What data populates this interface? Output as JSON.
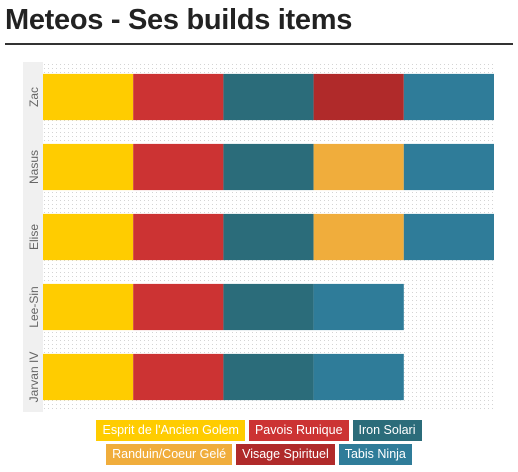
{
  "page": {
    "title": "Meteos - Ses builds items"
  },
  "chart_data": {
    "type": "bar",
    "orientation": "horizontal",
    "stacked": true,
    "title": "Meteos - Ses builds items",
    "xlabel": "",
    "ylabel": "",
    "categories": [
      "Zac",
      "Nasus",
      "Elise",
      "Lee-Sin",
      "Jarvan IV"
    ],
    "xlim": [
      0,
      5
    ],
    "grid": true,
    "legend_position": "bottom",
    "series": [
      {
        "name": "Esprit de l'Ancien Golem",
        "color": "#ffcc00",
        "values": [
          1,
          1,
          1,
          1,
          1
        ]
      },
      {
        "name": "Pavois Runique",
        "color": "#cc3333",
        "values": [
          1,
          1,
          1,
          1,
          1
        ]
      },
      {
        "name": "Iron Solari",
        "color": "#2b6c7a",
        "values": [
          1,
          1,
          1,
          1,
          1
        ]
      },
      {
        "name": "Randuin/Coeur Gelé",
        "color": "#f0ad3c",
        "values": [
          0,
          1,
          1,
          0,
          0
        ]
      },
      {
        "name": "Visage Spirituel",
        "color": "#b02a2a",
        "values": [
          1,
          0,
          0,
          0,
          0
        ]
      },
      {
        "name": "Tabis Ninja",
        "color": "#2f7c99",
        "values": [
          1,
          1,
          1,
          1,
          1
        ]
      }
    ]
  },
  "legend": {
    "rows": [
      [
        0,
        1,
        2
      ],
      [
        3,
        4,
        5
      ]
    ]
  }
}
